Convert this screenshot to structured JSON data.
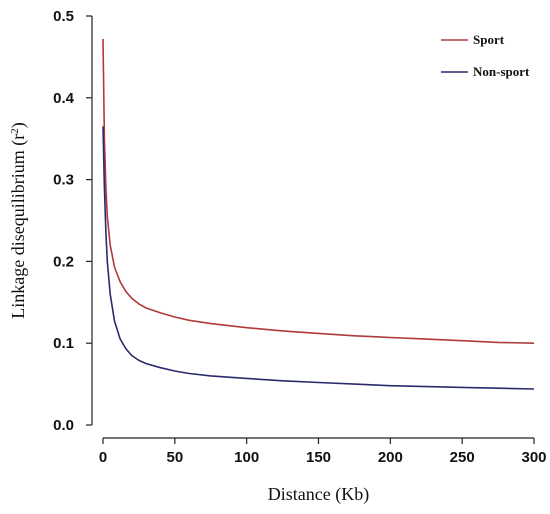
{
  "chart_data": {
    "type": "line",
    "title": "",
    "xlabel": "Distance (Kb)",
    "ylabel": "Linkage disequilibrium (r",
    "ylabel_sup": "2",
    "ylabel_end": ")",
    "xlim": [
      0,
      300
    ],
    "ylim": [
      0,
      0.5
    ],
    "xticks": [
      "0",
      "50",
      "100",
      "150",
      "200",
      "250",
      "300"
    ],
    "yticks": [
      "0.0",
      "0.1",
      "0.2",
      "0.3",
      "0.4",
      "0.5"
    ],
    "grid": false,
    "legend_position": "top-right",
    "series": [
      {
        "name": "Sport",
        "color": "#b03a3a",
        "x": [
          0,
          1,
          2,
          3,
          5,
          8,
          12,
          16,
          20,
          25,
          30,
          40,
          50,
          60,
          75,
          100,
          125,
          150,
          175,
          200,
          225,
          250,
          275,
          300
        ],
        "y": [
          0.472,
          0.35,
          0.29,
          0.255,
          0.22,
          0.193,
          0.175,
          0.163,
          0.155,
          0.148,
          0.143,
          0.137,
          0.132,
          0.128,
          0.124,
          0.119,
          0.115,
          0.112,
          0.109,
          0.107,
          0.105,
          0.103,
          0.101,
          0.1
        ]
      },
      {
        "name": "Non-sport",
        "color": "#2a2a6e",
        "x": [
          0,
          1,
          2,
          3,
          5,
          8,
          12,
          16,
          20,
          25,
          30,
          40,
          50,
          60,
          75,
          100,
          125,
          150,
          175,
          200,
          225,
          250,
          275,
          300
        ],
        "y": [
          0.365,
          0.29,
          0.235,
          0.2,
          0.16,
          0.127,
          0.105,
          0.093,
          0.085,
          0.079,
          0.075,
          0.07,
          0.066,
          0.063,
          0.06,
          0.057,
          0.054,
          0.052,
          0.05,
          0.048,
          0.047,
          0.046,
          0.045,
          0.044
        ]
      }
    ]
  }
}
